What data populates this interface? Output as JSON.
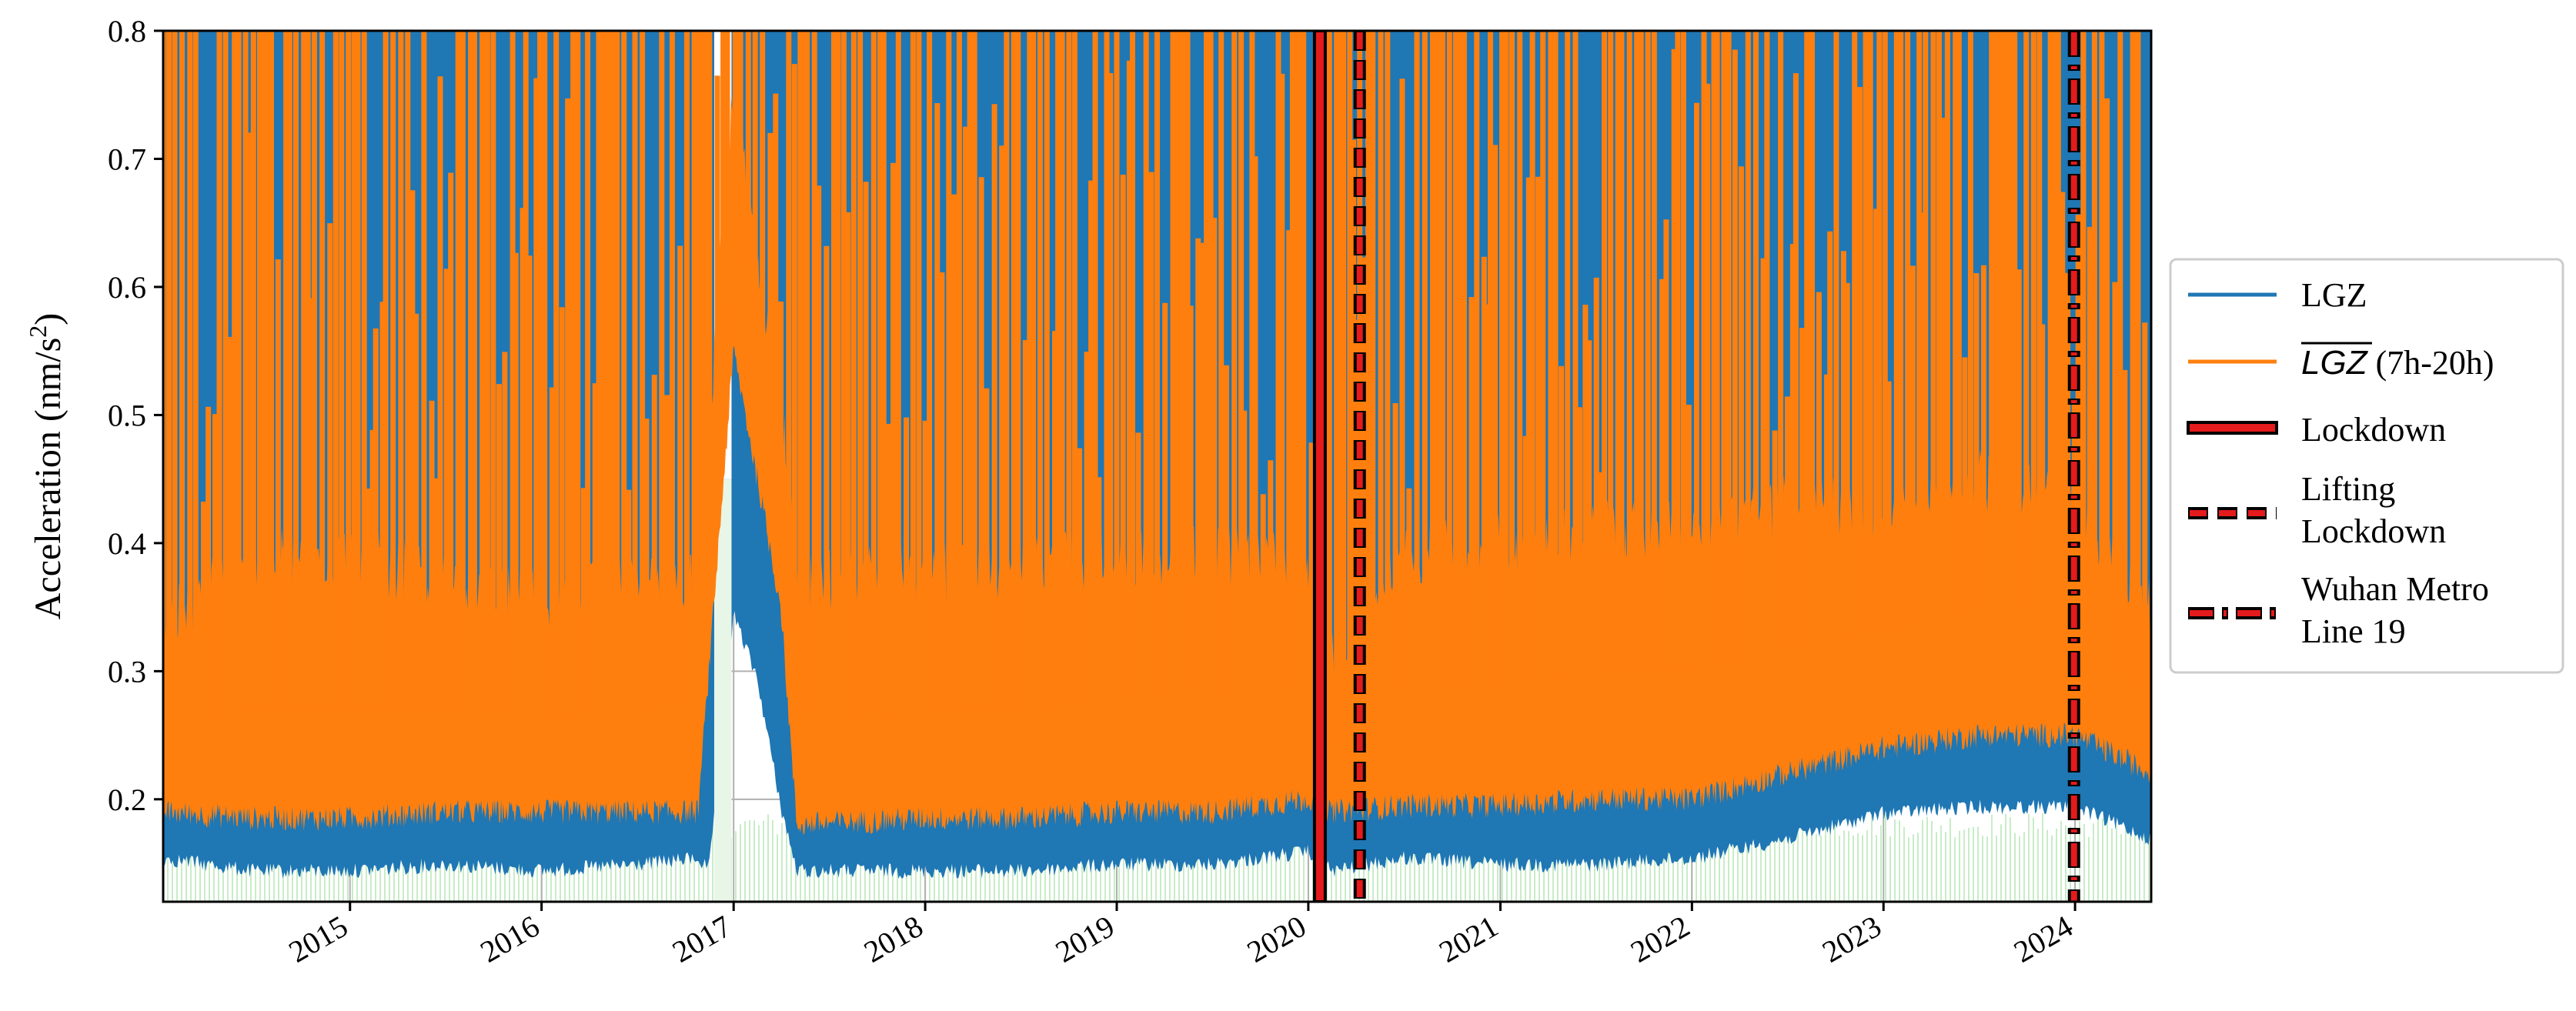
{
  "chart_data": {
    "type": "line",
    "title": "",
    "xlabel": "",
    "ylabel": "Acceleration (nm/s²)",
    "ylabel_base": "Acceleration (nm/s",
    "ylabel_exp": "2",
    "ylabel_close": ")",
    "xlim": [
      "2014-01-10",
      "2024-05-25"
    ],
    "ylim": [
      0.12,
      0.8
    ],
    "yticks": [
      "0.2",
      "0.3",
      "0.4",
      "0.5",
      "0.6",
      "0.7",
      "0.8"
    ],
    "xticks": [
      "2015",
      "2016",
      "2017",
      "2018",
      "2019",
      "2020",
      "2021",
      "2022",
      "2023",
      "2024"
    ],
    "grid": true,
    "legend_placement": "outside right",
    "colors": {
      "lgz": "#1f77b4",
      "lgz_mean": "#ff7f0e",
      "event_fill": "#e41a1c",
      "event_edge": "#000000",
      "background_bars": "#c8ecc8"
    },
    "series": [
      {
        "name": "LGZ",
        "note_style": "thin blue line",
        "points": [
          {
            "x": "2014-01-10",
            "low": 0.16,
            "high": 0.8
          },
          {
            "x": "2014-07-01",
            "low": 0.15,
            "high": 0.8
          },
          {
            "x": "2015-01-01",
            "low": 0.15,
            "high": 0.8
          },
          {
            "x": "2015-07-01",
            "low": 0.155,
            "high": 0.8
          },
          {
            "x": "2016-01-01",
            "low": 0.15,
            "high": 0.8
          },
          {
            "x": "2016-07-01",
            "low": 0.155,
            "high": 0.8
          },
          {
            "x": "2016-10-25",
            "low": 0.16,
            "high": 0.8
          },
          {
            "x": "2016-11-15",
            "low": 0.15,
            "high": 0.8
          },
          {
            "x": "2017-01-01",
            "low": 0.35,
            "high": 0.8
          },
          {
            "x": "2017-02-15",
            "low": 0.3,
            "high": 0.8
          },
          {
            "x": "2017-04-01",
            "low": 0.2,
            "high": 0.8
          },
          {
            "x": "2017-05-01",
            "low": 0.15,
            "high": 0.8
          },
          {
            "x": "2018-01-01",
            "low": 0.15,
            "high": 0.8
          },
          {
            "x": "2018-07-01",
            "low": 0.15,
            "high": 0.8
          },
          {
            "x": "2019-01-01",
            "low": 0.155,
            "high": 0.8
          },
          {
            "x": "2019-07-01",
            "low": 0.155,
            "high": 0.8
          },
          {
            "x": "2020-01-01",
            "low": 0.165,
            "high": 0.8
          },
          {
            "x": "2020-02-15",
            "low": 0.15,
            "high": 0.8
          },
          {
            "x": "2020-07-01",
            "low": 0.16,
            "high": 0.8
          },
          {
            "x": "2021-01-01",
            "low": 0.155,
            "high": 0.8
          },
          {
            "x": "2021-07-01",
            "low": 0.155,
            "high": 0.8
          },
          {
            "x": "2022-01-01",
            "low": 0.16,
            "high": 0.8
          },
          {
            "x": "2022-07-01",
            "low": 0.175,
            "high": 0.8
          },
          {
            "x": "2023-01-01",
            "low": 0.195,
            "high": 0.8
          },
          {
            "x": "2023-07-01",
            "low": 0.2,
            "high": 0.8
          },
          {
            "x": "2024-01-01",
            "low": 0.2,
            "high": 0.8
          },
          {
            "x": "2024-05-25",
            "low": 0.175,
            "high": 0.8
          }
        ]
      },
      {
        "name": "LGZ (7h-20h)",
        "name_overlined": "LGZ",
        "name_suffix": " (7h-20h)",
        "points": [
          {
            "x": "2014-01-10",
            "low": 0.19,
            "mid": 0.26,
            "high": 0.33
          },
          {
            "x": "2014-07-01",
            "low": 0.185,
            "mid": 0.27,
            "high": 0.38
          },
          {
            "x": "2015-01-01",
            "low": 0.185,
            "mid": 0.27,
            "high": 0.38
          },
          {
            "x": "2015-07-01",
            "low": 0.19,
            "mid": 0.27,
            "high": 0.36
          },
          {
            "x": "2016-01-01",
            "low": 0.19,
            "mid": 0.265,
            "high": 0.35
          },
          {
            "x": "2016-07-01",
            "low": 0.19,
            "mid": 0.27,
            "high": 0.36
          },
          {
            "x": "2016-10-25",
            "low": 0.19,
            "mid": 0.28,
            "high": 0.36
          },
          {
            "x": "2017-01-01",
            "low": 0.55,
            "mid": 0.65,
            "high": 0.75
          },
          {
            "x": "2017-02-15",
            "low": 0.45,
            "mid": 0.55,
            "high": 0.62
          },
          {
            "x": "2017-04-01",
            "low": 0.35,
            "mid": 0.4,
            "high": 0.5
          },
          {
            "x": "2017-05-01",
            "low": 0.18,
            "mid": 0.26,
            "high": 0.36
          },
          {
            "x": "2018-01-01",
            "low": 0.185,
            "mid": 0.27,
            "high": 0.37
          },
          {
            "x": "2018-07-01",
            "low": 0.185,
            "mid": 0.27,
            "high": 0.37
          },
          {
            "x": "2019-01-01",
            "low": 0.19,
            "mid": 0.28,
            "high": 0.38
          },
          {
            "x": "2019-07-01",
            "low": 0.19,
            "mid": 0.28,
            "high": 0.38
          },
          {
            "x": "2020-01-01",
            "low": 0.2,
            "mid": 0.29,
            "high": 0.38
          },
          {
            "x": "2020-02-15",
            "low": 0.19,
            "mid": 0.24,
            "high": 0.3
          },
          {
            "x": "2020-07-01",
            "low": 0.195,
            "mid": 0.28,
            "high": 0.38
          },
          {
            "x": "2021-01-01",
            "low": 0.195,
            "mid": 0.29,
            "high": 0.39
          },
          {
            "x": "2021-07-01",
            "low": 0.2,
            "mid": 0.3,
            "high": 0.4
          },
          {
            "x": "2022-01-01",
            "low": 0.2,
            "mid": 0.3,
            "high": 0.4
          },
          {
            "x": "2022-07-01",
            "low": 0.22,
            "mid": 0.32,
            "high": 0.42
          },
          {
            "x": "2023-01-01",
            "low": 0.24,
            "mid": 0.33,
            "high": 0.42
          },
          {
            "x": "2023-07-01",
            "low": 0.25,
            "mid": 0.35,
            "high": 0.44
          },
          {
            "x": "2024-01-01",
            "low": 0.25,
            "mid": 0.33,
            "high": 0.42
          },
          {
            "x": "2024-05-25",
            "low": 0.22,
            "mid": 0.28,
            "high": 0.34
          }
        ]
      }
    ],
    "events": [
      {
        "name": "Lockdown",
        "x": "2020-01-23",
        "style": "solid"
      },
      {
        "name": "Lifting Lockdown",
        "x": "2020-04-08",
        "style": "dashed",
        "legend_lines": [
          "Lifting",
          "Lockdown"
        ]
      },
      {
        "name": "Wuhan Metro Line 19",
        "x": "2023-12-30",
        "style": "dashdot",
        "legend_lines": [
          "Wuhan Metro",
          "Line 19"
        ]
      }
    ]
  }
}
